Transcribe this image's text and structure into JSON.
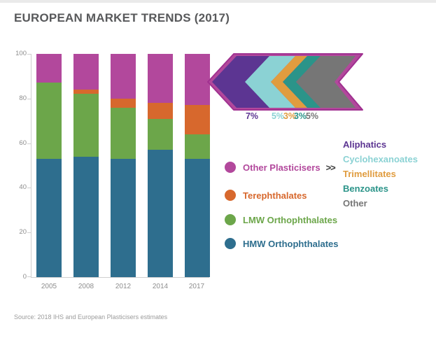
{
  "title": "EUROPEAN MARKET TRENDS (2017)",
  "source": "Source: 2018 IHS and European Plasticisers estimates",
  "colors": {
    "magenta": "#b2489c",
    "magenta_stroke": "#a03090",
    "axis_line": "#cfcfcf",
    "axis_text": "#8d8d8d",
    "title_text": "#58595b"
  },
  "chart_data": {
    "type": "bar",
    "stacked": true,
    "title": "EUROPEAN MARKET TRENDS (2017)",
    "xlabel": "",
    "ylabel": "",
    "ylim": [
      0,
      100
    ],
    "grid": false,
    "categories": [
      "2005",
      "2008",
      "2012",
      "2014",
      "2017"
    ],
    "ytick_labels": [
      "100",
      "80",
      "60",
      "40",
      "20",
      "0"
    ],
    "series": [
      {
        "name": "HMW Orthophthalates",
        "color": "#2e6e8e",
        "values": [
          53,
          54,
          53,
          57,
          53
        ]
      },
      {
        "name": "LMW Orthophthalates",
        "color": "#6ca64a",
        "values": [
          34,
          28,
          23,
          14,
          11
        ]
      },
      {
        "name": "Terephthalates",
        "color": "#d7682d",
        "values": [
          0,
          2,
          4,
          7,
          13
        ]
      },
      {
        "name": "Other Plasticisers",
        "color": "#b2489c",
        "values": [
          13,
          16,
          20,
          22,
          23
        ]
      }
    ]
  },
  "legend": {
    "separator": ">>",
    "rows": [
      {
        "label": "Other Plasticisers",
        "color": "#b2489c"
      },
      {
        "label": "Terephthalates",
        "color": "#d7682d"
      },
      {
        "label": "LMW Orthophthalates",
        "color": "#6ca64a"
      },
      {
        "label": "HMW Orthophthalates",
        "color": "#2e6e8e"
      }
    ]
  },
  "breakdown": {
    "items": [
      {
        "label": "Aliphatics",
        "pct": "7%",
        "color": "#5c3592"
      },
      {
        "label": "Cyclohexanoates",
        "pct": "5%",
        "color": "#8bd2d4"
      },
      {
        "label": "Trimellitates",
        "pct": "3%",
        "color": "#e09c3f"
      },
      {
        "label": "Benzoates",
        "pct": "3%",
        "color": "#2b9489"
      },
      {
        "label": "Other",
        "pct": "5%",
        "color": "#767676"
      }
    ]
  }
}
